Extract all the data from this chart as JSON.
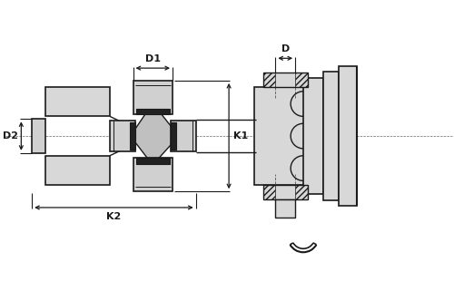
{
  "bg_color": "#ffffff",
  "line_color": "#1a1a1a",
  "fig_width": 5.0,
  "fig_height": 3.1,
  "dpi": 100,
  "labels": {
    "D1": "D1",
    "D2": "D2",
    "D": "D",
    "K1": "K1",
    "K2": "K2"
  }
}
